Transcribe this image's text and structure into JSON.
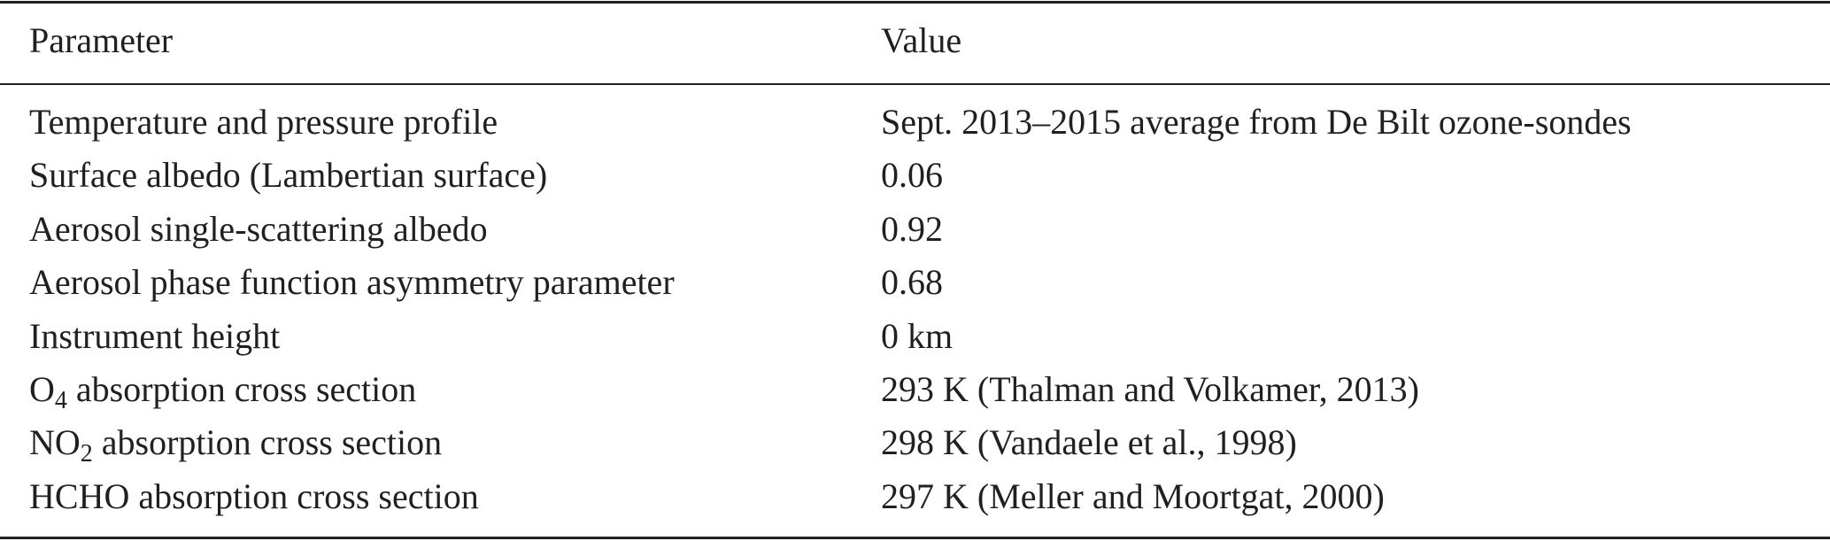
{
  "table": {
    "header": [
      "Parameter",
      "Value"
    ],
    "rows": [
      [
        {
          "text": "Temperature and pressure profile"
        },
        "Sept. 2013–2015 average from De Bilt ozone-sondes"
      ],
      [
        {
          "text": "Surface albedo (Lambertian surface)"
        },
        "0.06"
      ],
      [
        {
          "text": "Aerosol single-scattering albedo"
        },
        "0.92"
      ],
      [
        {
          "text": "Aerosol phase function asymmetry parameter"
        },
        "0.68"
      ],
      [
        {
          "text": "Instrument height"
        },
        "0 km"
      ],
      [
        {
          "text": "O",
          "sub": "4",
          "rest": "absorption cross section"
        },
        "293 K (Thalman and Volkamer, 2013)"
      ],
      [
        {
          "text": "NO",
          "sub": "2",
          "rest": "absorption cross section"
        },
        "298 K (Vandaele et al., 1998)"
      ],
      [
        {
          "text": "HCHO absorption cross section"
        },
        "297 K (Meller and Moortgat, 2000)"
      ]
    ]
  }
}
